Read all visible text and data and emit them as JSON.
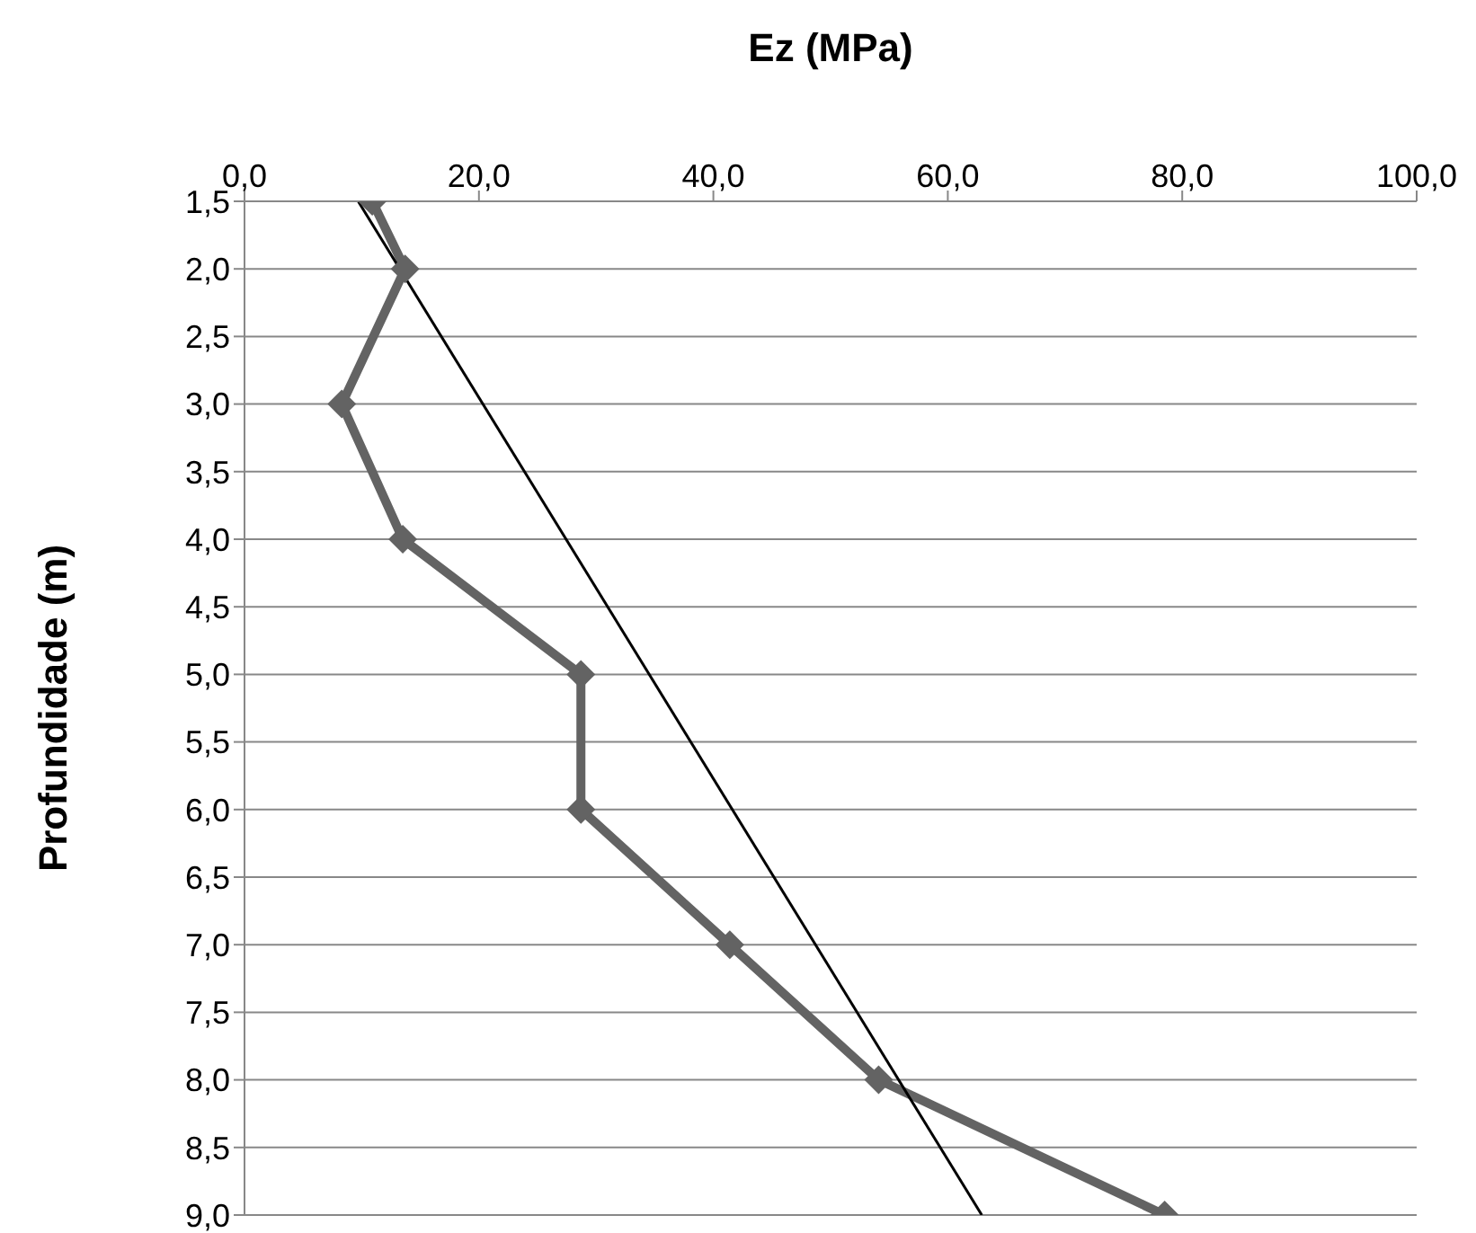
{
  "chart_data": {
    "type": "line",
    "xlabel": "Ez (MPa)",
    "ylabel": "Profundidade (m)",
    "xlim": [
      0,
      100
    ],
    "xticks": [
      {
        "value": 0,
        "label": "0,0"
      },
      {
        "value": 20,
        "label": "20,0"
      },
      {
        "value": 40,
        "label": "40,0"
      },
      {
        "value": 60,
        "label": "60,0"
      },
      {
        "value": 80,
        "label": "80,0"
      },
      {
        "value": 100,
        "label": "100,0"
      }
    ],
    "ylim": [
      9.0,
      1.5
    ],
    "yticks": [
      {
        "value": 1.5,
        "label": "1,5"
      },
      {
        "value": 2,
        "label": "2,0"
      },
      {
        "value": 2.5,
        "label": "2,5"
      },
      {
        "value": 3,
        "label": "3,0"
      },
      {
        "value": 3.5,
        "label": "3,5"
      },
      {
        "value": 4,
        "label": "4,0"
      },
      {
        "value": 4.5,
        "label": "4,5"
      },
      {
        "value": 5,
        "label": "5,0"
      },
      {
        "value": 5.5,
        "label": "5,5"
      },
      {
        "value": 6,
        "label": "6,0"
      },
      {
        "value": 6.5,
        "label": "6,5"
      },
      {
        "value": 7,
        "label": "7,0"
      },
      {
        "value": 7.5,
        "label": "7,5"
      },
      {
        "value": 8,
        "label": "8,0"
      },
      {
        "value": 8.5,
        "label": "8,5"
      },
      {
        "value": 9,
        "label": "9,0"
      }
    ],
    "grid": "y",
    "marker": "diamond",
    "series": [
      {
        "color": "#636363",
        "x": [
          10.9,
          13.7,
          8.3,
          13.5,
          28.7,
          28.7,
          41.4,
          54.1,
          78.5
        ],
        "values": [
          1.5,
          2.0,
          3.0,
          4.0,
          5.0,
          6.0,
          7.0,
          8.0,
          9.0
        ]
      },
      {
        "color": "#000000",
        "marker": "none",
        "x": [
          9.7,
          62.9
        ],
        "values": [
          1.5,
          9.0
        ]
      }
    ]
  }
}
